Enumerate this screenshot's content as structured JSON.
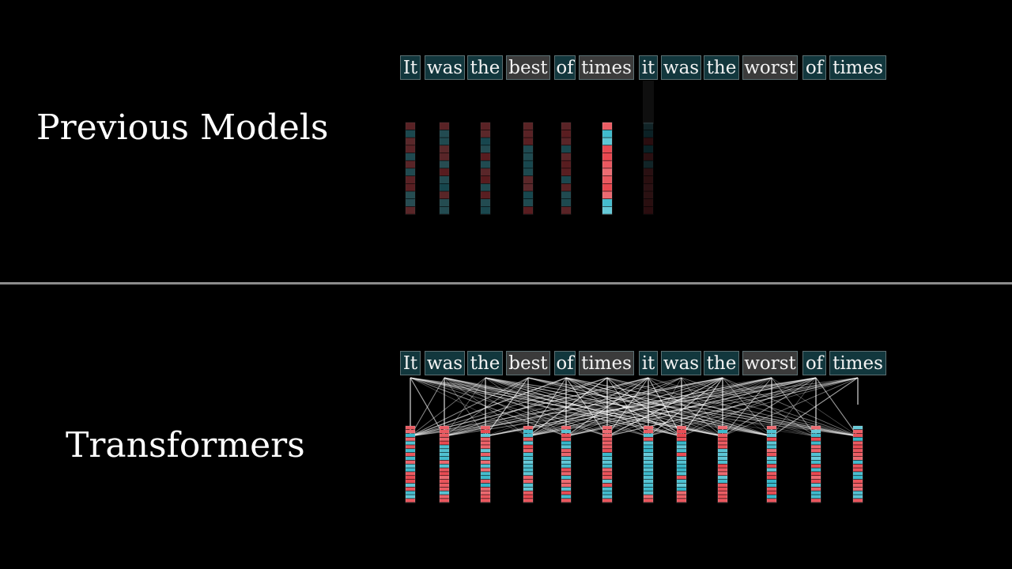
{
  "labels": {
    "previous_models": "Previous Models",
    "transformers": "Transformers"
  },
  "sentence_tokens": [
    "It",
    "was",
    "the",
    "best",
    "of",
    "times",
    "it",
    "was",
    "the",
    "worst",
    "of",
    "times"
  ],
  "colors": {
    "background": "#000000",
    "divider": "#8c8c8c",
    "token_teal": "#12373d",
    "token_gray": "#3b3b3b",
    "cell_red": "#e8474f",
    "cell_teal": "#34b6c9",
    "attention_line": "#ffffff"
  },
  "token_tints": [
    "teal",
    "teal",
    "teal",
    "gray",
    "teal",
    "gray",
    "teal",
    "teal",
    "teal",
    "gray",
    "teal",
    "teal"
  ],
  "previous_models": {
    "processed_columns": 6,
    "highlighted_column": 6,
    "fading_column": 7
  },
  "transformers": {
    "processed_columns": 12
  }
}
